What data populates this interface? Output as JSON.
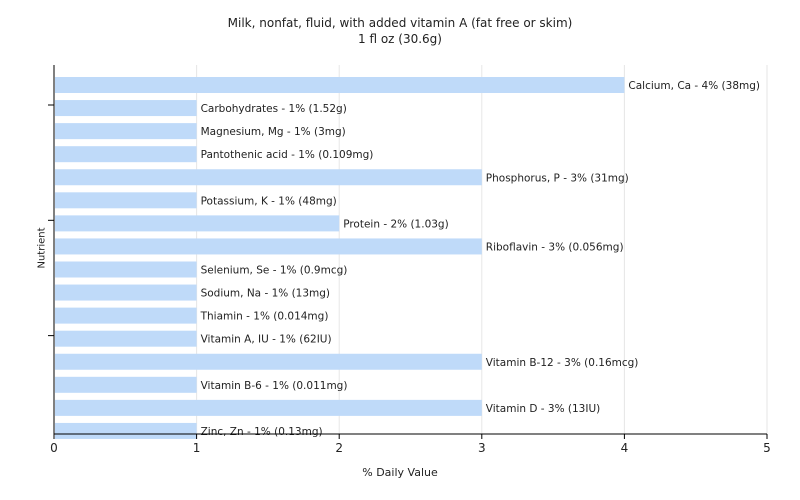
{
  "chart_data": {
    "type": "bar",
    "orientation": "horizontal",
    "title": "Milk, nonfat, fluid, with added vitamin A (fat free or skim)",
    "subtitle": "1 fl oz (30.6g)",
    "xlabel": "% Daily Value",
    "ylabel": "Nutrient",
    "xlim": [
      0,
      5
    ],
    "xticks": [
      0,
      1,
      2,
      3,
      4,
      5
    ],
    "grid": true,
    "bar_color": "#bfdaf9",
    "categories": [
      "Calcium, Ca",
      "Carbohydrates",
      "Magnesium, Mg",
      "Pantothenic acid",
      "Phosphorus, P",
      "Potassium, K",
      "Protein",
      "Riboflavin",
      "Selenium, Se",
      "Sodium, Na",
      "Thiamin",
      "Vitamin A, IU",
      "Vitamin B-12",
      "Vitamin B-6",
      "Vitamin D",
      "Zinc, Zn"
    ],
    "values": [
      4,
      1,
      1,
      1,
      3,
      1,
      2,
      3,
      1,
      1,
      1,
      1,
      3,
      1,
      3,
      1
    ],
    "labels": [
      "Calcium, Ca - 4% (38mg)",
      "Carbohydrates - 1% (1.52g)",
      "Magnesium, Mg - 1% (3mg)",
      "Pantothenic acid - 1% (0.109mg)",
      "Phosphorus, P - 3% (31mg)",
      "Potassium, K - 1% (48mg)",
      "Protein - 2% (1.03g)",
      "Riboflavin - 3% (0.056mg)",
      "Selenium, Se - 1% (0.9mcg)",
      "Sodium, Na - 1% (13mg)",
      "Thiamin - 1% (0.014mg)",
      "Vitamin A, IU - 1% (62IU)",
      "Vitamin B-12 - 3% (0.16mcg)",
      "Vitamin B-6 - 1% (0.011mg)",
      "Vitamin D - 3% (13IU)",
      "Zinc, Zn - 1% (0.13mg)"
    ]
  }
}
